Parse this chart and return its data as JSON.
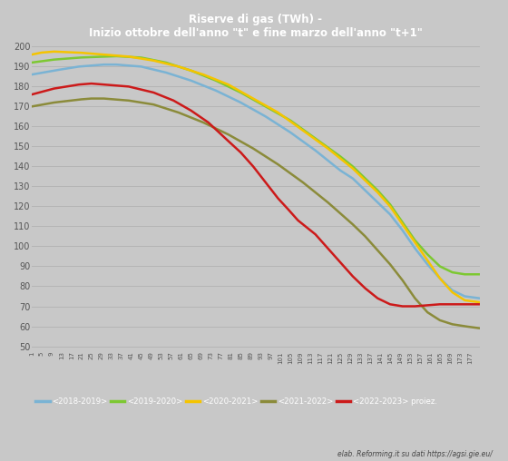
{
  "title_line1": "Riserve di gas (TWh) -",
  "title_line2": "Inizio ottobre dell'anno \"t\" e fine marzo dell'anno \"t+1\"",
  "background_color": "#c8c8c8",
  "ylim": [
    48,
    202
  ],
  "yticks": [
    50,
    60,
    70,
    80,
    90,
    100,
    110,
    120,
    130,
    140,
    150,
    160,
    170,
    180,
    190,
    200
  ],
  "legend_entries": [
    "<2018-2019>",
    "<2019-2020>",
    "<2020-2021>",
    "<2021-2022>",
    "<2022-2023> proiez."
  ],
  "line_colors": [
    "#7ab3d4",
    "#7dc832",
    "#f5c400",
    "#8b8b3a",
    "#cc1a1a"
  ],
  "line_widths": [
    1.8,
    1.8,
    1.8,
    1.8,
    1.8
  ],
  "footnote": "elab. Reforming.it su dati https://agsi.gie.eu/",
  "x_tick_positions": [
    1,
    5,
    9,
    13,
    17,
    21,
    25,
    29,
    33,
    37,
    41,
    45,
    49,
    53,
    57,
    61,
    65,
    69,
    73,
    77,
    81,
    85,
    89,
    93,
    97,
    101,
    105,
    109,
    113,
    117,
    121,
    125,
    129,
    133,
    137,
    141,
    145,
    149,
    153,
    157,
    161,
    165,
    169,
    173,
    177
  ]
}
